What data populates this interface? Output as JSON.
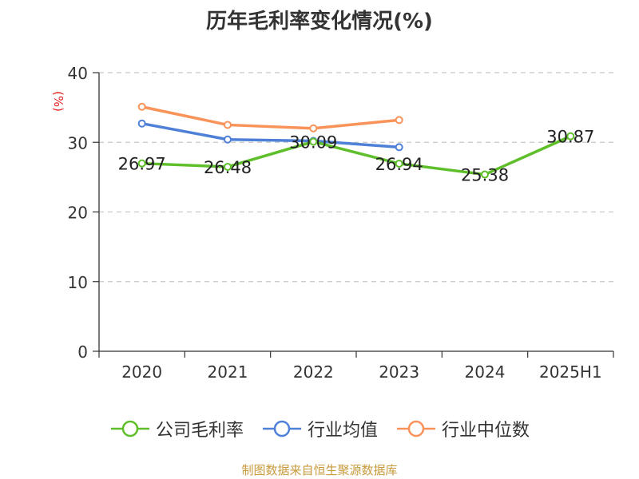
{
  "chart_data": {
    "type": "line",
    "title": "历年毛利率变化情况(%)",
    "ylabel": "(%)",
    "ylim": [
      0,
      40
    ],
    "yticks": [
      0,
      10,
      20,
      30,
      40
    ],
    "categories": [
      "2020",
      "2021",
      "2022",
      "2023",
      "2024",
      "2025H1"
    ],
    "grid": true,
    "legend_position": "bottom",
    "series": [
      {
        "name": "公司毛利率",
        "color": "#5fbf2b",
        "values": [
          26.97,
          26.48,
          30.09,
          26.94,
          25.38,
          30.87
        ],
        "labels": [
          "26.97",
          "26.48",
          "30.09",
          "26.94",
          "25.38",
          "30.87"
        ]
      },
      {
        "name": "行业均值",
        "color": "#4f80d8",
        "values": [
          32.7,
          30.4,
          30.2,
          29.3,
          null,
          null
        ]
      },
      {
        "name": "行业中位数",
        "color": "#f8935a",
        "values": [
          35.1,
          32.5,
          32.0,
          33.2,
          null,
          null
        ]
      }
    ]
  },
  "footer": {
    "source": "制图数据来自恒生聚源数据库"
  }
}
